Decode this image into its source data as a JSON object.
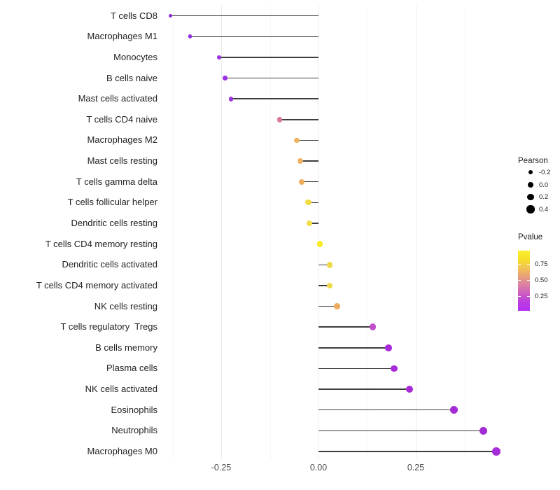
{
  "chart_data": {
    "type": "lollipop",
    "orientation": "horizontal",
    "title": "",
    "xlabel": "",
    "ylabel": "",
    "x_axis": {
      "range": [
        -0.4,
        0.49
      ],
      "major_ticks": [
        -0.25,
        0.0,
        0.25
      ],
      "tick_labels": [
        "-0.25",
        "0.00",
        "0.25"
      ],
      "minor_ticks": [
        -0.375,
        -0.125,
        0.125,
        0.375
      ],
      "grid": true
    },
    "size_encoding": "Pearson",
    "color_encoding": "Pvalue",
    "points": [
      {
        "label": "T cells CD8",
        "pearson": -0.38,
        "pvalue": 0.04,
        "color": "#8c2bd4"
      },
      {
        "label": "Macrophages M1",
        "pearson": -0.33,
        "pvalue": 0.05,
        "color": "#8f2ede"
      },
      {
        "label": "Monocytes",
        "pearson": -0.255,
        "pvalue": 0.05,
        "color": "#9a30e2"
      },
      {
        "label": "B cells naive",
        "pearson": -0.24,
        "pvalue": 0.06,
        "color": "#9a30e2"
      },
      {
        "label": "Mast cells activated",
        "pearson": -0.225,
        "pvalue": 0.06,
        "color": "#9c33de"
      },
      {
        "label": "T cells CD4 naive",
        "pearson": -0.1,
        "pvalue": 0.45,
        "color": "#d9779e"
      },
      {
        "label": "Macrophages M2",
        "pearson": -0.055,
        "pvalue": 0.7,
        "color": "#efb262"
      },
      {
        "label": "Mast cells resting",
        "pearson": -0.047,
        "pvalue": 0.7,
        "color": "#efb262"
      },
      {
        "label": "T cells gamma delta",
        "pearson": -0.043,
        "pvalue": 0.72,
        "color": "#edae5c"
      },
      {
        "label": "T cells follicular helper",
        "pearson": -0.026,
        "pvalue": 0.85,
        "color": "#f2dd45"
      },
      {
        "label": "Dendritic cells resting",
        "pearson": -0.023,
        "pvalue": 0.85,
        "color": "#f2dd45"
      },
      {
        "label": "T cells CD4 memory resting",
        "pearson": 0.004,
        "pvalue": 0.95,
        "color": "#f7ec22"
      },
      {
        "label": "Dendritic cells activated",
        "pearson": 0.029,
        "pvalue": 0.82,
        "color": "#f1d84a"
      },
      {
        "label": "T cells CD4 memory activated",
        "pearson": 0.029,
        "pvalue": 0.82,
        "color": "#f1d84a"
      },
      {
        "label": "NK cells resting",
        "pearson": 0.048,
        "pvalue": 0.68,
        "color": "#ecab5e"
      },
      {
        "label": "T cells regulatory  Tregs",
        "pearson": 0.139,
        "pvalue": 0.25,
        "color": "#c14fc9"
      },
      {
        "label": "B cells memory",
        "pearson": 0.18,
        "pvalue": 0.05,
        "color": "#a92ad8"
      },
      {
        "label": "Plasma cells",
        "pearson": 0.194,
        "pvalue": 0.04,
        "color": "#a92ad8"
      },
      {
        "label": "NK cells activated",
        "pearson": 0.233,
        "pvalue": 0.04,
        "color": "#a62ad8"
      },
      {
        "label": "Eosinophils",
        "pearson": 0.348,
        "pvalue": 0.03,
        "color": "#a32cd6"
      },
      {
        "label": "Neutrophils",
        "pearson": 0.424,
        "pvalue": 0.02,
        "color": "#a32cd6"
      },
      {
        "label": "Macrophages M0",
        "pearson": 0.457,
        "pvalue": 0.02,
        "color": "#a72cdb"
      }
    ]
  },
  "legends": {
    "pearson": {
      "title": "Pearson",
      "items": [
        {
          "label": "-0.2",
          "value": -0.2
        },
        {
          "label": "0.0",
          "value": 0.0
        },
        {
          "label": "0.2",
          "value": 0.2
        },
        {
          "label": "0.4",
          "value": 0.4
        }
      ],
      "dot_color": "#000000"
    },
    "pvalue": {
      "title": "Pvalue",
      "tick_labels": [
        "0.75",
        "0.50",
        "0.25"
      ],
      "tick_values": [
        0.75,
        0.5,
        0.25
      ],
      "bar_range": [
        0.96,
        0.02
      ],
      "gradient_top_to_bottom": [
        "#f9ef2f",
        "#f7e026",
        "#f2c352",
        "#e8a07b",
        "#dc7fa2",
        "#cc5cc0",
        "#bb3ce2",
        "#b52ff0"
      ]
    }
  },
  "colors": {
    "stem": "#3d3d3d",
    "grid_major": "#ececec",
    "grid_minor": "#f6f6f6",
    "axis_text": "#4d4d4d",
    "background": "#ffffff"
  }
}
